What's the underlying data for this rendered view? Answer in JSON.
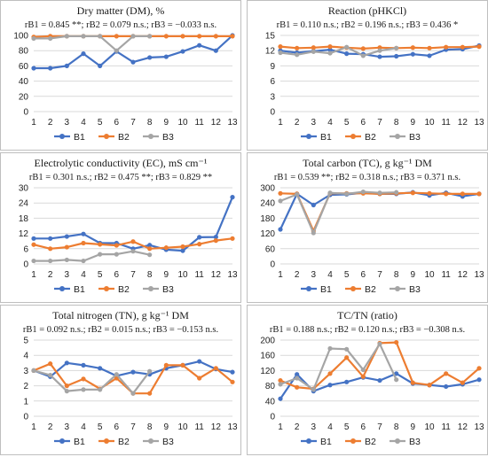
{
  "chart_data": [
    {
      "type": "line",
      "title": "Dry matter (DM), %",
      "stats": "rB1 = 0.845 **; rB2 = 0.079 n.s.; rB3 = −0.033 n.s.",
      "x": [
        1,
        2,
        3,
        4,
        5,
        6,
        7,
        8,
        9,
        10,
        11,
        12,
        13
      ],
      "yticks": [
        0,
        20,
        40,
        60,
        80,
        100
      ],
      "ylim": [
        0,
        100
      ],
      "grid": true,
      "legend": "bottom",
      "series": [
        {
          "name": "B1",
          "color": "#4472c4",
          "values": [
            57,
            57,
            60,
            76,
            60,
            79,
            65,
            71,
            72,
            79,
            87,
            80,
            100
          ]
        },
        {
          "name": "B2",
          "color": "#ed7d31",
          "values": [
            98,
            99,
            99,
            99,
            99,
            99,
            99,
            99,
            99,
            99,
            99,
            99,
            99
          ]
        },
        {
          "name": "B3",
          "color": "#a5a5a5",
          "values": [
            96,
            96,
            99,
            99,
            99,
            80,
            99,
            99,
            null,
            null,
            null,
            null,
            null
          ]
        }
      ]
    },
    {
      "type": "line",
      "title": "Reaction (pHKCl)",
      "stats": "rB1 = 0.110 n.s.; rB2 = 0.196 n.s.; rB3 = 0.436 *",
      "x": [
        1,
        2,
        3,
        4,
        5,
        6,
        7,
        8,
        9,
        10,
        11,
        12,
        13
      ],
      "yticks": [
        0,
        3,
        6,
        9,
        12,
        15
      ],
      "ylim": [
        0,
        15
      ],
      "grid": true,
      "legend": "bottom",
      "series": [
        {
          "name": "B1",
          "color": "#4472c4",
          "values": [
            12.0,
            11.6,
            11.9,
            12.2,
            11.4,
            11.3,
            10.8,
            10.9,
            11.3,
            11.0,
            12.2,
            12.3,
            13.0
          ]
        },
        {
          "name": "B2",
          "color": "#ed7d31",
          "values": [
            12.8,
            12.5,
            12.6,
            12.8,
            12.6,
            12.4,
            12.6,
            12.5,
            12.6,
            12.5,
            12.7,
            12.7,
            12.8
          ]
        },
        {
          "name": "B3",
          "color": "#a5a5a5",
          "values": [
            11.6,
            11.2,
            11.8,
            11.5,
            12.7,
            11.0,
            12.0,
            12.5,
            null,
            null,
            null,
            null,
            null
          ]
        }
      ]
    },
    {
      "type": "line",
      "title": "Electrolytic conductivity (EC), mS cm⁻¹",
      "stats": "rB1 = 0.301 n.s.; rB2 = 0.475 **; rB3 = 0.829 **",
      "x": [
        1,
        2,
        3,
        4,
        5,
        6,
        7,
        8,
        9,
        10,
        11,
        12,
        13
      ],
      "yticks": [
        0,
        6,
        12,
        18,
        24,
        30
      ],
      "ylim": [
        0,
        30
      ],
      "grid": true,
      "legend": "bottom",
      "series": [
        {
          "name": "B1",
          "color": "#4472c4",
          "values": [
            10.0,
            10.0,
            10.8,
            11.8,
            8.2,
            8.2,
            6.0,
            7.4,
            5.6,
            5.2,
            10.5,
            10.6,
            26.3
          ]
        },
        {
          "name": "B2",
          "color": "#ed7d31",
          "values": [
            7.6,
            6.0,
            6.6,
            8.2,
            7.7,
            7.3,
            8.8,
            6.0,
            6.4,
            6.8,
            7.8,
            9.2,
            10.0
          ]
        },
        {
          "name": "B3",
          "color": "#a5a5a5",
          "values": [
            1.2,
            1.2,
            1.6,
            1.2,
            3.8,
            3.8,
            5.0,
            3.6,
            null,
            null,
            null,
            null,
            null
          ]
        }
      ]
    },
    {
      "type": "line",
      "title": "Total carbon (TC), g kg⁻¹ DM",
      "stats": "rB1 = 0.539 **; rB2 = 0.318 n.s.; rB3 = 0.371 n.s.",
      "x": [
        1,
        2,
        3,
        4,
        5,
        6,
        7,
        8,
        9,
        10,
        11,
        12,
        13
      ],
      "yticks": [
        0,
        60,
        120,
        180,
        240,
        300
      ],
      "ylim": [
        0,
        300
      ],
      "grid": true,
      "legend": "bottom",
      "series": [
        {
          "name": "B1",
          "color": "#4472c4",
          "values": [
            136,
            276,
            232,
            272,
            274,
            280,
            276,
            276,
            282,
            270,
            280,
            266,
            276
          ]
        },
        {
          "name": "B2",
          "color": "#ed7d31",
          "values": [
            278,
            276,
            130,
            278,
            278,
            278,
            276,
            278,
            280,
            278,
            276,
            276,
            276
          ]
        },
        {
          "name": "B3",
          "color": "#a5a5a5",
          "values": [
            248,
            274,
            122,
            280,
            276,
            284,
            280,
            282,
            null,
            null,
            null,
            null,
            null
          ]
        }
      ]
    },
    {
      "type": "line",
      "title": "Total nitrogen (TN), g kg⁻¹ DM",
      "stats": "rB1 = 0.092 n.s.; rB2 = 0.015 n.s.; rB3 = −0.153 n.s.",
      "x": [
        1,
        2,
        3,
        4,
        5,
        6,
        7,
        8,
        9,
        10,
        11,
        12,
        13
      ],
      "yticks": [
        0,
        1,
        2,
        3,
        4,
        5
      ],
      "ylim": [
        0,
        5
      ],
      "grid": true,
      "legend": "bottom",
      "series": [
        {
          "name": "B1",
          "color": "#4472c4",
          "values": [
            3.0,
            2.6,
            3.5,
            3.35,
            3.15,
            2.65,
            2.9,
            2.75,
            3.15,
            3.35,
            3.6,
            3.1,
            2.9
          ]
        },
        {
          "name": "B2",
          "color": "#ed7d31",
          "values": [
            3.0,
            3.45,
            2.0,
            2.45,
            1.8,
            2.5,
            1.5,
            1.5,
            3.35,
            3.35,
            2.5,
            3.15,
            2.25
          ]
        },
        {
          "name": "B3",
          "color": "#a5a5a5",
          "values": [
            3.0,
            2.7,
            1.65,
            1.75,
            1.75,
            2.75,
            1.5,
            2.95,
            null,
            null,
            null,
            null,
            null
          ]
        }
      ]
    },
    {
      "type": "line",
      "title": "TC/TN (ratio)",
      "stats": "rB1 = 0.188 n.s.; rB2 = 0.120 n.s.; rB3 = −0.308 n.s.",
      "x": [
        1,
        2,
        3,
        4,
        5,
        6,
        7,
        8,
        9,
        10,
        11,
        12,
        13
      ],
      "yticks": [
        0,
        40,
        80,
        120,
        160,
        200
      ],
      "ylim": [
        0,
        200
      ],
      "grid": true,
      "legend": "bottom",
      "series": [
        {
          "name": "B1",
          "color": "#4472c4",
          "values": [
            46,
            110,
            66,
            82,
            90,
            102,
            94,
            112,
            86,
            82,
            78,
            84,
            96
          ]
        },
        {
          "name": "B2",
          "color": "#ed7d31",
          "values": [
            94,
            76,
            72,
            112,
            154,
            104,
            192,
            194,
            88,
            82,
            112,
            88,
            126
          ]
        },
        {
          "name": "B3",
          "color": "#a5a5a5",
          "values": [
            84,
            100,
            70,
            178,
            176,
            122,
            190,
            96,
            null,
            null,
            null,
            null,
            null
          ]
        }
      ]
    }
  ]
}
